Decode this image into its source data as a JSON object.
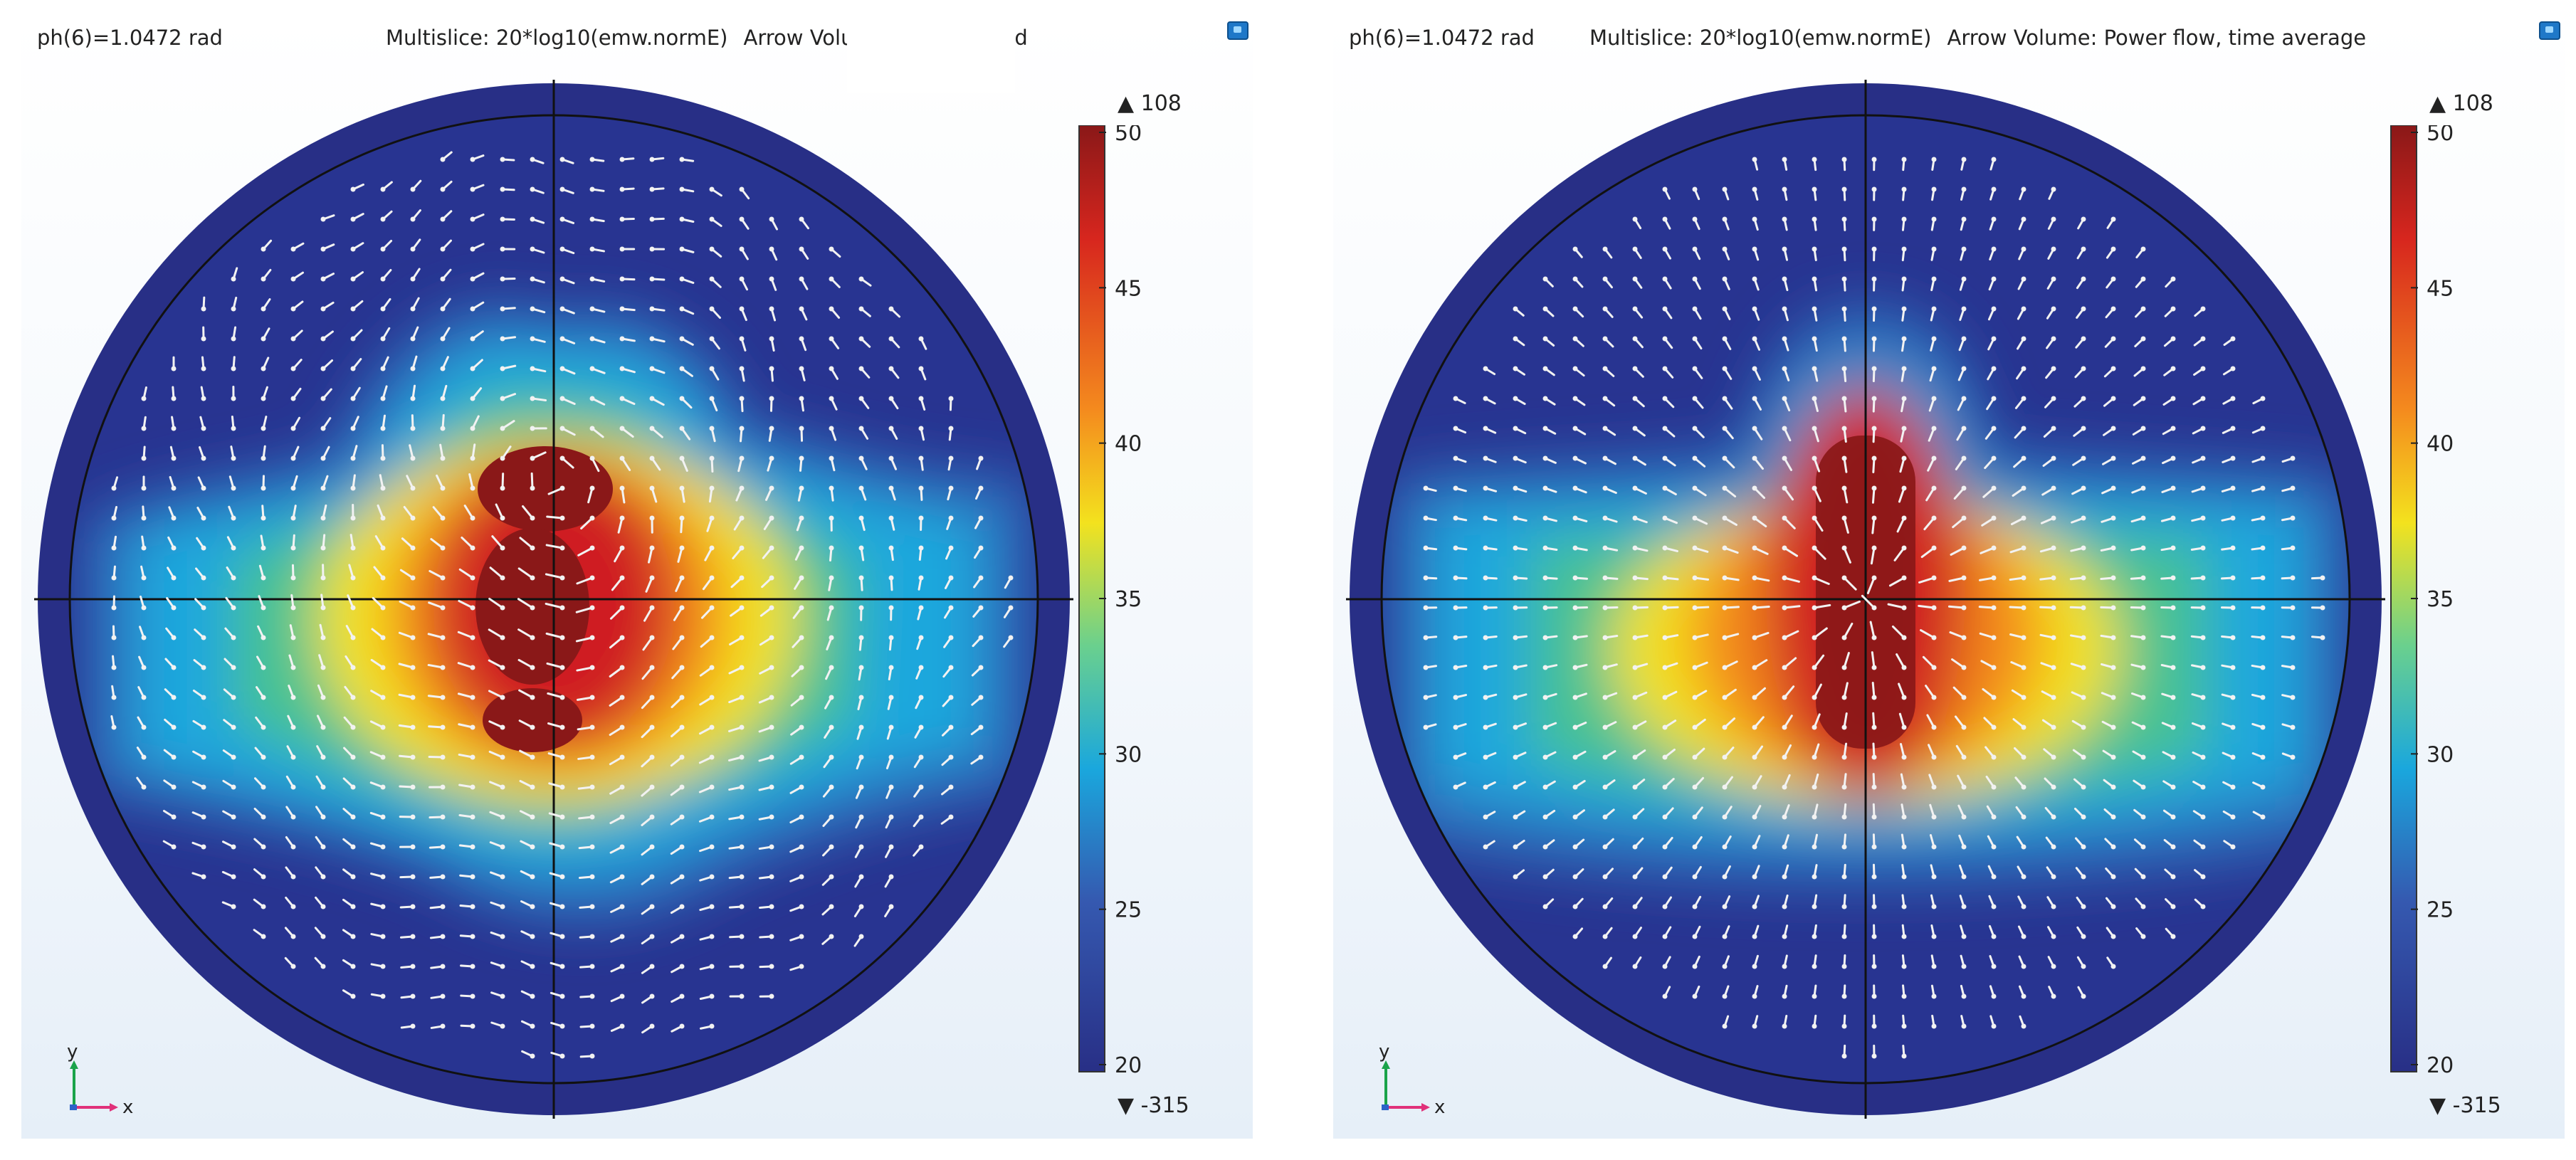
{
  "colors": {
    "dark_blue": "#282f86",
    "blue": "#2f6fbd",
    "cyan": "#1aa7dd",
    "green": "#46c291",
    "yellow": "#f3e21e",
    "orange": "#f48a1e",
    "red": "#cf1f23",
    "dark_red": "#8a1818",
    "arrow": "#f2f2f2",
    "axis_y": "#1aa34a",
    "axis_x": "#e0317a"
  },
  "panels": [
    {
      "phase_label": "ph(6)=1.0472 rad",
      "multislice_label": "Multislice: 20*log10(emw.normE)",
      "arrow_label": "Arrow Volume: Electric field",
      "range_max_label": "▲ 108",
      "range_min_label": "▼ -315",
      "colorbar_ticks": [
        "50",
        "45",
        "40",
        "35",
        "30",
        "25",
        "20"
      ],
      "axis_y_label": "y",
      "axis_x_label": "x",
      "icon": "view-icon"
    },
    {
      "phase_label": "ph(6)=1.0472 rad",
      "multislice_label": "Multislice: 20*log10(emw.normE)",
      "arrow_label": "Arrow Volume: Power flow, time average",
      "range_max_label": "▲ 108",
      "range_min_label": "▼ -315",
      "colorbar_ticks": [
        "50",
        "45",
        "40",
        "35",
        "30",
        "25",
        "20"
      ],
      "axis_y_label": "y",
      "axis_x_label": "x",
      "icon": "view-icon"
    }
  ]
}
